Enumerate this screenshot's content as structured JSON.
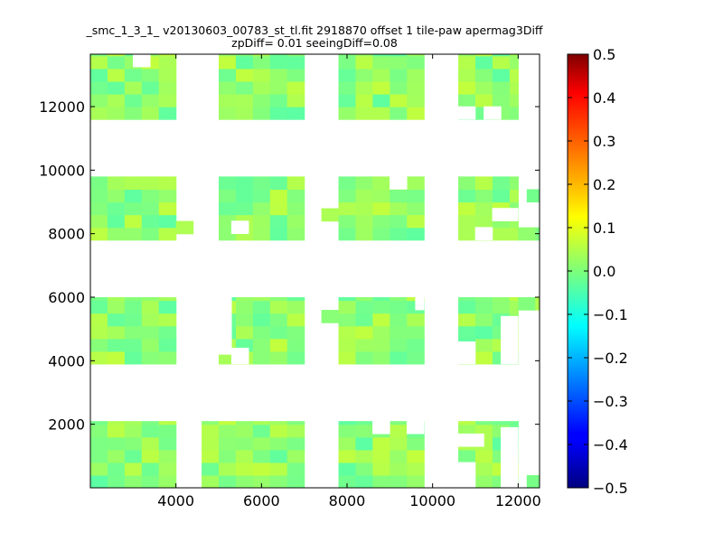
{
  "chart_data": {
    "type": "heatmap",
    "title_line1": "_smc_1_3_1_ v20130603_00783_st_tl.fit 2918870 offset 1 tile-paw apermag3Diff",
    "title_line2": "zpDiff= 0.01 seeingDiff=0.08",
    "xlabel": "",
    "ylabel": "",
    "xlim": [
      2000,
      12500
    ],
    "ylim": [
      0,
      13650
    ],
    "x_ticks": [
      4000,
      6000,
      8000,
      10000,
      12000
    ],
    "y_ticks": [
      2000,
      4000,
      6000,
      8000,
      10000,
      12000
    ],
    "colorbar": {
      "colormap": "jet",
      "range": [
        -0.5,
        0.5
      ],
      "ticks": [
        0.5,
        0.4,
        0.3,
        0.2,
        0.1,
        0.0,
        -0.1,
        -0.2,
        -0.3,
        -0.4,
        -0.5
      ],
      "tick_labels": [
        "0.5",
        "0.4",
        "0.3",
        "0.2",
        "0.1",
        "0.0",
        "−0.1",
        "−0.2",
        "−0.3",
        "−0.4",
        "−0.5"
      ]
    },
    "cell_size": 400,
    "blocks": [
      {
        "x": [
          2000,
          4000
        ],
        "y": [
          11600,
          13650
        ]
      },
      {
        "x": [
          5000,
          7000
        ],
        "y": [
          11600,
          13650
        ]
      },
      {
        "x": [
          7800,
          9800
        ],
        "y": [
          11600,
          13650
        ]
      },
      {
        "x": [
          10600,
          12000
        ],
        "y": [
          11600,
          13650
        ]
      },
      {
        "x": [
          2000,
          4000
        ],
        "y": [
          7800,
          9800
        ]
      },
      {
        "x": [
          4000,
          4400
        ],
        "y": [
          8000,
          8400
        ]
      },
      {
        "x": [
          5000,
          7000
        ],
        "y": [
          7800,
          9800
        ]
      },
      {
        "x": [
          7400,
          7800
        ],
        "y": [
          8400,
          8800
        ]
      },
      {
        "x": [
          7800,
          9800
        ],
        "y": [
          7800,
          9800
        ]
      },
      {
        "x": [
          10600,
          12000
        ],
        "y": [
          7800,
          9800
        ]
      },
      {
        "x": [
          12000,
          12500
        ],
        "y": [
          7800,
          8200
        ]
      },
      {
        "x": [
          12200,
          12500
        ],
        "y": [
          9000,
          9400
        ]
      },
      {
        "x": [
          2000,
          4000
        ],
        "y": [
          3900,
          6000
        ]
      },
      {
        "x": [
          5000,
          7000
        ],
        "y": [
          3900,
          6000
        ]
      },
      {
        "x": [
          7400,
          7800
        ],
        "y": [
          5200,
          5600
        ]
      },
      {
        "x": [
          7800,
          9800
        ],
        "y": [
          3900,
          6000
        ]
      },
      {
        "x": [
          10600,
          12000
        ],
        "y": [
          3900,
          6000
        ]
      },
      {
        "x": [
          12000,
          12500
        ],
        "y": [
          5600,
          6000
        ]
      },
      {
        "x": [
          2000,
          4000
        ],
        "y": [
          0,
          2100
        ]
      },
      {
        "x": [
          4600,
          7000
        ],
        "y": [
          0,
          2100
        ]
      },
      {
        "x": [
          7800,
          9800
        ],
        "y": [
          0,
          2100
        ]
      },
      {
        "x": [
          10600,
          12000
        ],
        "y": [
          0,
          2100
        ]
      },
      {
        "x": [
          12200,
          12500
        ],
        "y": [
          0,
          400
        ]
      }
    ],
    "holes": [
      {
        "x": [
          3000,
          3400
        ],
        "y": [
          13250,
          13650
        ]
      },
      {
        "x": [
          8600,
          9000
        ],
        "y": [
          1700,
          2100
        ]
      },
      {
        "x": [
          9400,
          9800
        ],
        "y": [
          1700,
          2100
        ]
      },
      {
        "x": [
          9000,
          9400
        ],
        "y": [
          9400,
          9800
        ]
      },
      {
        "x": [
          5300,
          5700
        ],
        "y": [
          8000,
          8400
        ]
      },
      {
        "x": [
          11200,
          11600
        ],
        "y": [
          11600,
          12000
        ]
      },
      {
        "x": [
          10600,
          11000
        ],
        "y": [
          11600,
          12000
        ]
      },
      {
        "x": [
          11400,
          12000
        ],
        "y": [
          8400,
          8800
        ]
      },
      {
        "x": [
          11000,
          11400
        ],
        "y": [
          7800,
          8200
        ]
      },
      {
        "x": [
          5000,
          5300
        ],
        "y": [
          4200,
          6000
        ]
      },
      {
        "x": [
          5300,
          5700
        ],
        "y": [
          3900,
          4400
        ]
      },
      {
        "x": [
          11600,
          12000
        ],
        "y": [
          3900,
          5400
        ]
      },
      {
        "x": [
          10600,
          11000
        ],
        "y": [
          3900,
          4600
        ]
      },
      {
        "x": [
          11600,
          12000
        ],
        "y": [
          0,
          1900
        ]
      },
      {
        "x": [
          10600,
          11200
        ],
        "y": [
          1300,
          1700
        ]
      },
      {
        "x": [
          10600,
          11000
        ],
        "y": [
          0,
          800
        ]
      },
      {
        "x": [
          9600,
          9800
        ],
        "y": [
          5600,
          6000
        ]
      }
    ]
  }
}
